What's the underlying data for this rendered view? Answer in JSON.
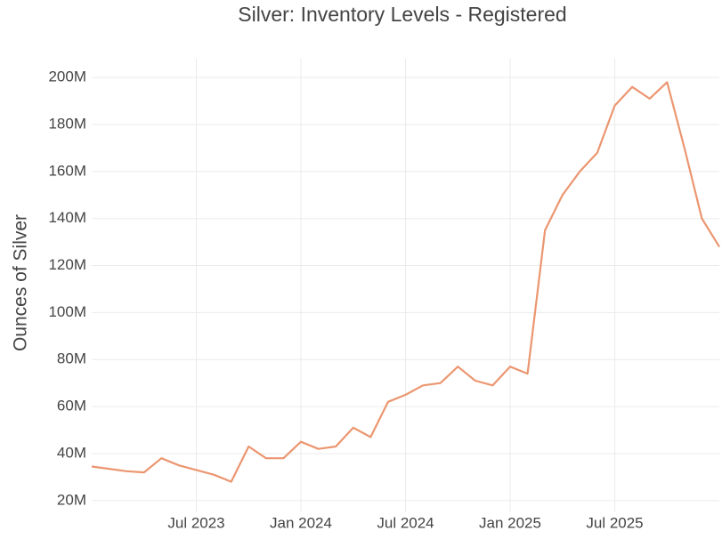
{
  "chart_data": {
    "type": "line",
    "title": "Silver: Inventory Levels - Registered",
    "y_label": "Ounces of Silver",
    "x": [
      "2023-01",
      "2023-02",
      "2023-03",
      "2023-04",
      "2023-05",
      "2023-06",
      "2023-07",
      "2023-08",
      "2023-09",
      "2023-10",
      "2023-11",
      "2023-12",
      "2024-01",
      "2024-02",
      "2024-03",
      "2024-04",
      "2024-05",
      "2024-06",
      "2024-07",
      "2024-08",
      "2024-09",
      "2024-10",
      "2024-11",
      "2024-12",
      "2025-01",
      "2025-02",
      "2025-03",
      "2025-04",
      "2025-05",
      "2025-06",
      "2025-07",
      "2025-08",
      "2025-09",
      "2025-10",
      "2025-11",
      "2025-12",
      "2026-01"
    ],
    "series": [
      {
        "name": "Registered",
        "color": "#eb9670",
        "values": [
          34500000,
          33500000,
          32500000,
          32000000,
          38000000,
          35000000,
          33000000,
          31000000,
          28000000,
          43000000,
          38000000,
          38000000,
          45000000,
          42000000,
          43000000,
          51000000,
          47000000,
          62000000,
          65000000,
          69000000,
          70000000,
          77000000,
          71000000,
          69000000,
          77000000,
          74000000,
          135000000,
          150000000,
          160000000,
          168000000,
          188000000,
          196000000,
          191000000,
          198000000,
          170000000,
          140000000,
          128000000
        ]
      }
    ],
    "xlim": [
      "2023-01",
      "2026-01"
    ],
    "xticks": [
      {
        "value": "2023-07",
        "label": "Jul 2023"
      },
      {
        "value": "2024-01",
        "label": "Jan 2024"
      },
      {
        "value": "2024-07",
        "label": "Jul 2024"
      },
      {
        "value": "2025-01",
        "label": "Jan 2025"
      },
      {
        "value": "2025-07",
        "label": "Jul 2025"
      }
    ],
    "ylim": [
      15000000,
      208000000
    ],
    "yticks": [
      {
        "value": 20000000,
        "label": "20M"
      },
      {
        "value": 40000000,
        "label": "40M"
      },
      {
        "value": 60000000,
        "label": "60M"
      },
      {
        "value": 80000000,
        "label": "80M"
      },
      {
        "value": 100000000,
        "label": "100M"
      },
      {
        "value": 120000000,
        "label": "120M"
      },
      {
        "value": 140000000,
        "label": "140M"
      },
      {
        "value": 160000000,
        "label": "160M"
      },
      {
        "value": 180000000,
        "label": "180M"
      },
      {
        "value": 200000000,
        "label": "200M"
      }
    ],
    "grid": true
  }
}
